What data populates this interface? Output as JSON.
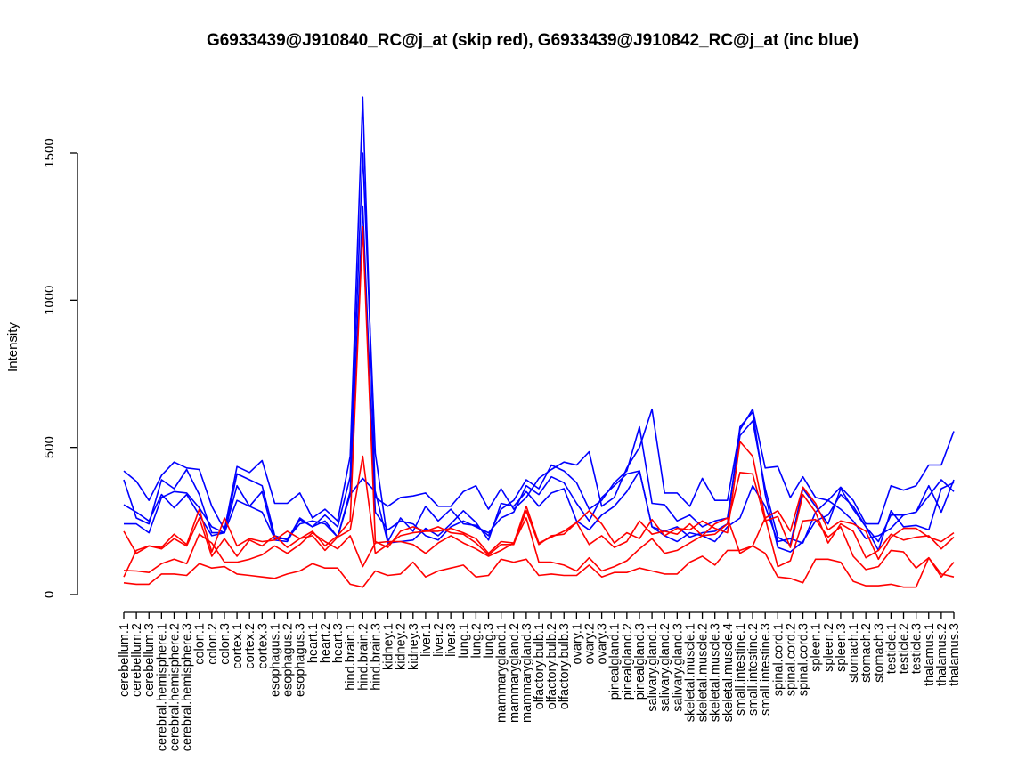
{
  "chart_data": {
    "type": "line",
    "title": "G6933439@J910840_RC@j_at (skip red), G6933439@J910842_RC@j_at (inc blue)",
    "xlabel": "",
    "ylabel": "Intensity",
    "ylim": [
      0,
      1500
    ],
    "yticks": [
      "0",
      "500",
      "1000",
      "1500"
    ],
    "ytick_values": [
      0,
      500,
      1000,
      1500
    ],
    "grid": false,
    "legend": "none",
    "categories": [
      "cerebellum.1",
      "cerebellum.2",
      "cerebellum.3",
      "cerebral.hemisphere.1",
      "cerebral.hemisphere.2",
      "cerebral.hemisphere.3",
      "colon.1",
      "colon.2",
      "colon.3",
      "cortex.1",
      "cortex.2",
      "cortex.3",
      "esophagus.1",
      "esophagus.2",
      "esophagus.3",
      "heart.1",
      "heart.2",
      "heart.3",
      "hind.brain.1",
      "hind.brain.2",
      "hind.brain.3",
      "kidney.1",
      "kidney.2",
      "kidney.3",
      "liver.1",
      "liver.2",
      "liver.3",
      "lung.1",
      "lung.2",
      "lung.3",
      "mammarygland.1",
      "mammarygland.2",
      "mammarygland.3",
      "olfactory.bulb.1",
      "olfactory.bulb.2",
      "olfactory.bulb.3",
      "ovary.1",
      "ovary.2",
      "ovary.3",
      "pinealgland.1",
      "pinealgland.2",
      "pinealgland.3",
      "salivary.gland.1",
      "salivary.gland.2",
      "salivary.gland.3",
      "skeletal.muscle.1",
      "skeletal.muscle.2",
      "skeletal.muscle.3",
      "skeletal.muscle.4",
      "small.intestine.1",
      "small.intestine.2",
      "small.intestine.3",
      "spinal.cord.1",
      "spinal.cord.2",
      "spinal.cord.3",
      "spleen.1",
      "spleen.2",
      "spleen.3",
      "stomach.1",
      "stomach.2",
      "stomach.3",
      "testicle.1",
      "testicle.2",
      "testicle.3",
      "thalamus.1",
      "thalamus.2",
      "thalamus.3"
    ],
    "series": [
      {
        "name": "inc blue 1",
        "color": "#0000ff",
        "values": [
          420,
          385,
          320,
          405,
          450,
          430,
          425,
          300,
          220,
          435,
          415,
          455,
          310,
          310,
          345,
          260,
          290,
          250,
          470,
          1690,
          330,
          300,
          330,
          335,
          345,
          300,
          300,
          350,
          370,
          290,
          360,
          290,
          330,
          395,
          425,
          450,
          440,
          485,
          300,
          330,
          430,
          500,
          630,
          345,
          345,
          300,
          395,
          320,
          320,
          560,
          630,
          430,
          435,
          330,
          400,
          330,
          320,
          365,
          320,
          240,
          240,
          370,
          355,
          370,
          440,
          440,
          555
        ]
      },
      {
        "name": "inc blue 2",
        "color": "#0000ff",
        "values": [
          390,
          260,
          240,
          390,
          360,
          425,
          340,
          210,
          210,
          410,
          390,
          370,
          200,
          185,
          260,
          230,
          270,
          230,
          400,
          1500,
          480,
          180,
          260,
          215,
          300,
          250,
          290,
          240,
          235,
          200,
          290,
          320,
          390,
          360,
          440,
          420,
          380,
          290,
          320,
          380,
          420,
          570,
          310,
          305,
          250,
          270,
          230,
          250,
          260,
          540,
          590,
          360,
          195,
          170,
          360,
          300,
          240,
          360,
          290,
          230,
          180,
          270,
          270,
          280,
          370,
          280,
          390
        ]
      },
      {
        "name": "inc blue 3",
        "color": "#0000ff",
        "values": [
          305,
          280,
          250,
          340,
          295,
          340,
          270,
          200,
          210,
          320,
          300,
          280,
          190,
          190,
          240,
          250,
          240,
          195,
          350,
          1320,
          280,
          220,
          250,
          240,
          200,
          185,
          230,
          250,
          230,
          210,
          260,
          280,
          370,
          340,
          400,
          380,
          310,
          250,
          330,
          370,
          410,
          420,
          230,
          215,
          230,
          195,
          210,
          215,
          240,
          570,
          620,
          340,
          160,
          145,
          180,
          250,
          270,
          340,
          300,
          230,
          150,
          285,
          230,
          235,
          220,
          360,
          380
        ]
      },
      {
        "name": "inc blue 4",
        "color": "#0000ff",
        "values": [
          240,
          240,
          210,
          330,
          350,
          345,
          295,
          230,
          210,
          370,
          300,
          350,
          185,
          180,
          255,
          230,
          250,
          195,
          340,
          395,
          350,
          175,
          180,
          185,
          225,
          200,
          240,
          285,
          245,
          185,
          310,
          300,
          350,
          300,
          345,
          360,
          250,
          220,
          270,
          300,
          350,
          420,
          230,
          200,
          180,
          210,
          200,
          180,
          230,
          260,
          370,
          300,
          180,
          190,
          175,
          280,
          320,
          290,
          250,
          190,
          200,
          225,
          270,
          280,
          335,
          390,
          350
        ]
      },
      {
        "name": "skip red 1",
        "color": "#ff0000",
        "values": [
          215,
          140,
          165,
          160,
          205,
          170,
          290,
          145,
          260,
          165,
          190,
          180,
          185,
          215,
          190,
          215,
          165,
          200,
          250,
          1250,
          180,
          160,
          215,
          230,
          215,
          215,
          225,
          210,
          190,
          140,
          180,
          175,
          300,
          175,
          195,
          215,
          245,
          285,
          240,
          175,
          210,
          190,
          255,
          200,
          225,
          220,
          250,
          225,
          210,
          520,
          470,
          260,
          285,
          215,
          365,
          310,
          220,
          250,
          240,
          215,
          120,
          195,
          225,
          225,
          195,
          180,
          210
        ]
      },
      {
        "name": "skip red 2",
        "color": "#ff0000",
        "values": [
          60,
          150,
          165,
          155,
          190,
          165,
          260,
          130,
          190,
          130,
          185,
          165,
          200,
          160,
          190,
          200,
          150,
          195,
          220,
          470,
          140,
          170,
          200,
          210,
          215,
          230,
          210,
          205,
          175,
          135,
          170,
          170,
          285,
          170,
          200,
          205,
          245,
          170,
          200,
          160,
          180,
          250,
          205,
          215,
          205,
          240,
          200,
          205,
          240,
          415,
          410,
          250,
          265,
          160,
          340,
          280,
          175,
          240,
          215,
          125,
          150,
          205,
          185,
          195,
          200,
          155,
          195
        ]
      },
      {
        "name": "skip red 3",
        "color": "#ff0000",
        "values": [
          82,
          80,
          75,
          105,
          120,
          105,
          205,
          175,
          110,
          110,
          120,
          135,
          165,
          140,
          170,
          210,
          180,
          155,
          200,
          95,
          175,
          180,
          180,
          170,
          140,
          175,
          200,
          175,
          155,
          130,
          150,
          175,
          260,
          110,
          110,
          100,
          80,
          125,
          80,
          95,
          115,
          155,
          190,
          140,
          150,
          175,
          200,
          240,
          260,
          140,
          165,
          260,
          95,
          115,
          250,
          255,
          195,
          230,
          130,
          85,
          95,
          150,
          145,
          90,
          125,
          60,
          110
        ]
      },
      {
        "name": "skip red 4",
        "color": "#ff0000",
        "values": [
          40,
          35,
          35,
          70,
          70,
          65,
          105,
          90,
          95,
          70,
          65,
          60,
          55,
          70,
          80,
          105,
          90,
          90,
          35,
          25,
          80,
          65,
          70,
          110,
          60,
          80,
          90,
          100,
          60,
          65,
          120,
          110,
          120,
          65,
          70,
          65,
          65,
          100,
          60,
          75,
          75,
          90,
          80,
          70,
          70,
          110,
          130,
          100,
          150,
          150,
          165,
          140,
          60,
          55,
          40,
          120,
          120,
          110,
          45,
          30,
          30,
          35,
          25,
          25,
          125,
          70,
          60
        ]
      }
    ]
  }
}
